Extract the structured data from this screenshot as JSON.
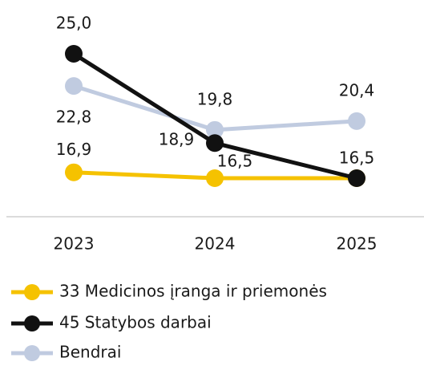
{
  "chart_data": {
    "type": "line",
    "categories": [
      "2023",
      "2024",
      "2025"
    ],
    "series": [
      {
        "name": "33 Medicinos įranga ir priemonės",
        "color": "#f5c200",
        "values": [
          16.9,
          16.5,
          16.5
        ],
        "value_labels": [
          "16,9",
          "16,5",
          null
        ]
      },
      {
        "name": "45 Statybos darbai",
        "color": "#111111",
        "values": [
          25.0,
          18.9,
          16.5
        ],
        "value_labels": [
          "25,0",
          "18,9",
          "16,5"
        ]
      },
      {
        "name": "Bendrai",
        "color": "#c0cbe0",
        "values": [
          22.8,
          19.8,
          20.4
        ],
        "value_labels": [
          "22,8",
          "19,8",
          "20,4"
        ]
      }
    ],
    "grid": false
  }
}
